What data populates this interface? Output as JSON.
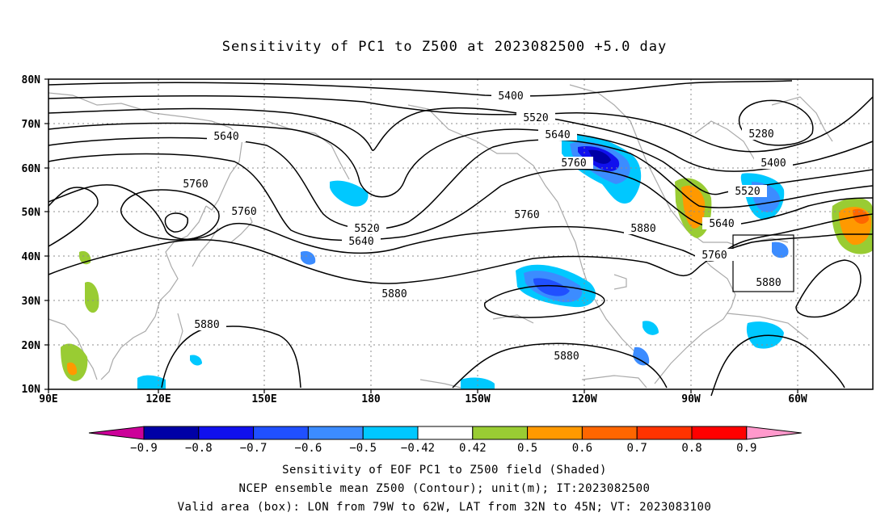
{
  "title": "Sensitivity of PC1 to Z500 at 2023082500 +5.0 day",
  "lat_labels": [
    "80N",
    "70N",
    "60N",
    "50N",
    "40N",
    "30N",
    "20N",
    "10N"
  ],
  "lon_labels": [
    "90E",
    "120E",
    "150E",
    "180",
    "150W",
    "120W",
    "90W",
    "60W"
  ],
  "contour_labels": [
    {
      "text": "5400"
    },
    {
      "text": "5520"
    },
    {
      "text": "5640"
    },
    {
      "text": "5760"
    },
    {
      "text": "5280"
    },
    {
      "text": "5400"
    },
    {
      "text": "5520"
    },
    {
      "text": "5640"
    },
    {
      "text": "5640"
    },
    {
      "text": "5760"
    },
    {
      "text": "5760"
    },
    {
      "text": "5520"
    },
    {
      "text": "5640"
    },
    {
      "text": "5760"
    },
    {
      "text": "5880"
    },
    {
      "text": "5760"
    },
    {
      "text": "5880"
    },
    {
      "text": "5880"
    },
    {
      "text": "5880"
    },
    {
      "text": "5880"
    }
  ],
  "colorbar": {
    "colors": [
      "#0000a6",
      "#1010ee",
      "#2050ff",
      "#3c8cff",
      "#00c8ff",
      "#ffffff",
      "#99cc33",
      "#ff9900",
      "#ff6600",
      "#ff3300",
      "#ff0000"
    ],
    "low_extend": "#cc0099",
    "high_extend": "#ff99cc",
    "labels": [
      "−0.9",
      "−0.8",
      "−0.7",
      "−0.6",
      "−0.5",
      "−0.42",
      "0.42",
      "0.5",
      "0.6",
      "0.7",
      "0.8",
      "0.9"
    ]
  },
  "caption": {
    "line1": "Sensitivity of EOF PC1 to Z500 field (Shaded)",
    "line2": "NCEP ensemble mean Z500 (Contour); unit(m); IT:2023082500",
    "line3": "Valid area (box): LON from 79W to 62W, LAT from 32N to 45N; VT: 2023083100"
  }
}
